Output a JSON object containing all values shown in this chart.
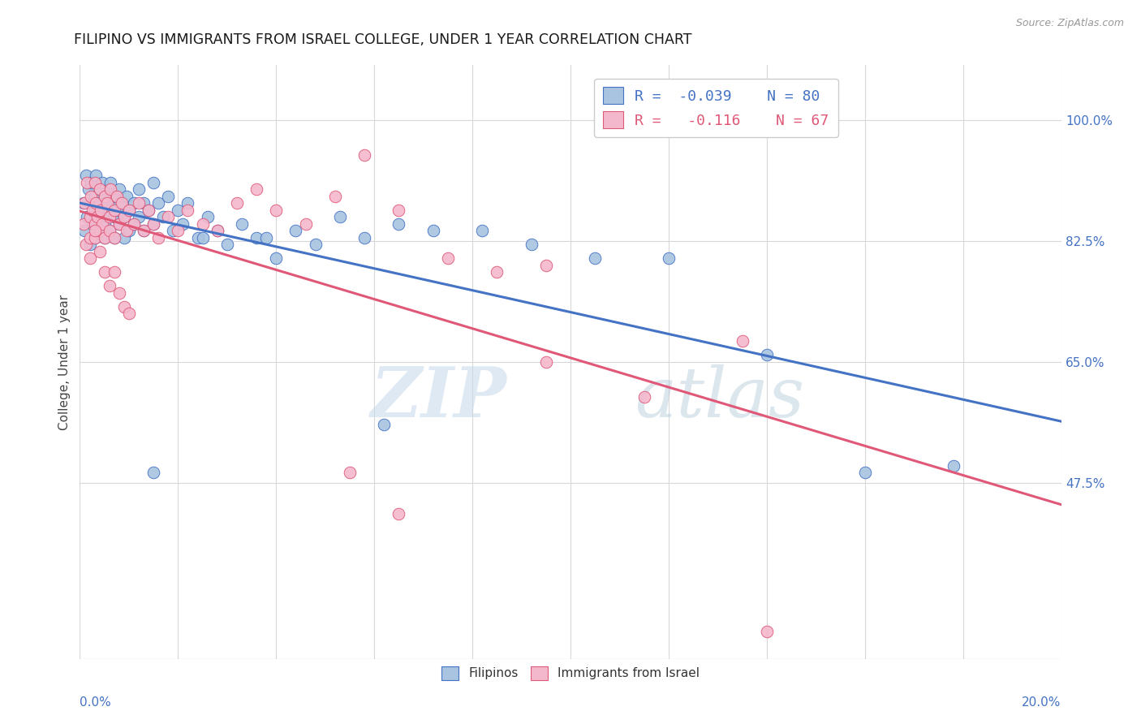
{
  "title": "FILIPINO VS IMMIGRANTS FROM ISRAEL COLLEGE, UNDER 1 YEAR CORRELATION CHART",
  "source": "Source: ZipAtlas.com",
  "ylabel": "College, Under 1 year",
  "ylabel_right_ticks": [
    0.475,
    0.65,
    0.825,
    1.0
  ],
  "ylabel_right_labels": [
    "47.5%",
    "65.0%",
    "82.5%",
    "100.0%"
  ],
  "xmin": 0.0,
  "xmax": 0.2,
  "ymin": 0.22,
  "ymax": 1.08,
  "filipino_color": "#a8c4e0",
  "israel_color": "#f4b8cc",
  "filipino_line_color": "#4472c4",
  "israel_line_color": "#e05878",
  "watermark_zip": "ZIP",
  "watermark_atlas": "atlas",
  "background_color": "#ffffff",
  "grid_color": "#d8d8d8",
  "title_color": "#1a1a1a",
  "axis_label_color": "#4472c4",
  "filipino_x": [
    0.0008,
    0.001,
    0.0012,
    0.0015,
    0.0018,
    0.002,
    0.002,
    0.0022,
    0.0025,
    0.003,
    0.003,
    0.003,
    0.0032,
    0.0035,
    0.004,
    0.004,
    0.004,
    0.0042,
    0.0045,
    0.005,
    0.005,
    0.005,
    0.0052,
    0.0055,
    0.006,
    0.006,
    0.006,
    0.0062,
    0.007,
    0.007,
    0.007,
    0.0075,
    0.008,
    0.008,
    0.0082,
    0.009,
    0.009,
    0.0095,
    0.01,
    0.01,
    0.011,
    0.011,
    0.012,
    0.012,
    0.013,
    0.013,
    0.014,
    0.015,
    0.015,
    0.016,
    0.017,
    0.018,
    0.019,
    0.02,
    0.021,
    0.022,
    0.024,
    0.026,
    0.028,
    0.03,
    0.033,
    0.036,
    0.04,
    0.044,
    0.048,
    0.053,
    0.058,
    0.065,
    0.072,
    0.082,
    0.092,
    0.105,
    0.12,
    0.14,
    0.16,
    0.178,
    0.062,
    0.038,
    0.025,
    0.015
  ],
  "filipino_y": [
    0.88,
    0.84,
    0.92,
    0.86,
    0.9,
    0.88,
    0.82,
    0.91,
    0.85,
    0.89,
    0.87,
    0.83,
    0.92,
    0.86,
    0.9,
    0.88,
    0.84,
    0.87,
    0.91,
    0.85,
    0.89,
    0.83,
    0.88,
    0.86,
    0.9,
    0.87,
    0.84,
    0.91,
    0.86,
    0.89,
    0.83,
    0.87,
    0.9,
    0.85,
    0.88,
    0.86,
    0.83,
    0.89,
    0.87,
    0.84,
    0.88,
    0.85,
    0.9,
    0.86,
    0.88,
    0.84,
    0.87,
    0.91,
    0.85,
    0.88,
    0.86,
    0.89,
    0.84,
    0.87,
    0.85,
    0.88,
    0.83,
    0.86,
    0.84,
    0.82,
    0.85,
    0.83,
    0.8,
    0.84,
    0.82,
    0.86,
    0.83,
    0.85,
    0.84,
    0.84,
    0.82,
    0.8,
    0.8,
    0.66,
    0.49,
    0.5,
    0.56,
    0.83,
    0.83,
    0.49
  ],
  "israel_x": [
    0.0008,
    0.001,
    0.0012,
    0.0015,
    0.002,
    0.002,
    0.0022,
    0.0025,
    0.003,
    0.003,
    0.003,
    0.0032,
    0.0035,
    0.004,
    0.004,
    0.0042,
    0.0045,
    0.005,
    0.005,
    0.0055,
    0.006,
    0.006,
    0.0062,
    0.007,
    0.007,
    0.0075,
    0.008,
    0.0085,
    0.009,
    0.0095,
    0.01,
    0.011,
    0.012,
    0.013,
    0.014,
    0.015,
    0.016,
    0.018,
    0.02,
    0.022,
    0.025,
    0.028,
    0.032,
    0.036,
    0.04,
    0.046,
    0.052,
    0.058,
    0.065,
    0.075,
    0.085,
    0.095,
    0.002,
    0.003,
    0.004,
    0.005,
    0.006,
    0.007,
    0.008,
    0.009,
    0.01,
    0.055,
    0.065,
    0.095,
    0.135,
    0.14,
    0.115
  ],
  "israel_y": [
    0.85,
    0.88,
    0.82,
    0.91,
    0.86,
    0.83,
    0.89,
    0.87,
    0.91,
    0.85,
    0.83,
    0.88,
    0.86,
    0.9,
    0.84,
    0.87,
    0.85,
    0.89,
    0.83,
    0.88,
    0.86,
    0.84,
    0.9,
    0.87,
    0.83,
    0.89,
    0.85,
    0.88,
    0.86,
    0.84,
    0.87,
    0.85,
    0.88,
    0.84,
    0.87,
    0.85,
    0.83,
    0.86,
    0.84,
    0.87,
    0.85,
    0.84,
    0.88,
    0.9,
    0.87,
    0.85,
    0.89,
    0.95,
    0.87,
    0.8,
    0.78,
    0.65,
    0.8,
    0.84,
    0.81,
    0.78,
    0.76,
    0.78,
    0.75,
    0.73,
    0.72,
    0.49,
    0.43,
    0.79,
    0.68,
    0.26,
    0.6
  ]
}
